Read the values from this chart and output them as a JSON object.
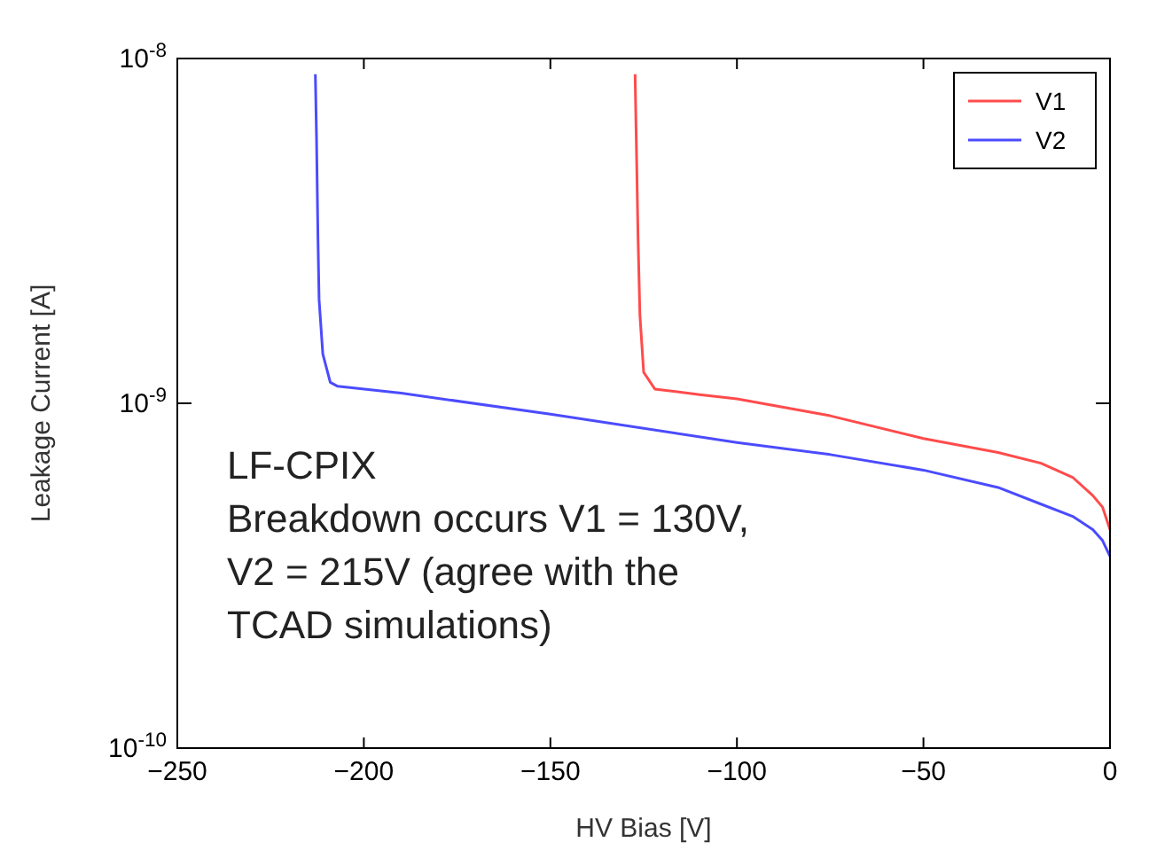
{
  "chart_data": {
    "type": "line",
    "xlabel": "HV Bias [V]",
    "ylabel": "Leakage Current [A]",
    "log": "y",
    "xlim": [
      -250,
      0
    ],
    "xticks": [
      -250,
      -200,
      -150,
      -100,
      -50,
      0
    ],
    "ylim": [
      1e-10,
      1e-08
    ],
    "yticks": [
      {
        "value": 1e-10,
        "label": "10$^{-10}$"
      },
      {
        "value": 1e-09,
        "label": "10$^{-9}$"
      },
      {
        "value": 1e-08,
        "label": "10$^{-8}$"
      }
    ],
    "legend": "top right",
    "grid": false,
    "line_style": "solid",
    "series": [
      {
        "name": "V1",
        "color": "#ff4b4b",
        "x": [
          -127.3,
          -127,
          -126.5,
          -126,
          -125,
          -122,
          -110,
          -100,
          -75,
          -50,
          -30,
          -18.5,
          -10,
          -4.6,
          -2,
          0
        ],
        "values": [
          9e-09,
          6e-09,
          3e-09,
          1.8e-09,
          1.23e-09,
          1.1e-09,
          1.06e-09,
          1.03e-09,
          9.2e-10,
          7.9e-10,
          7.2e-10,
          6.7e-10,
          6.1e-10,
          5.4e-10,
          5e-10,
          4.3e-10
        ]
      },
      {
        "name": "V2",
        "color": "#4b4bff",
        "x": [
          -213,
          -212.7,
          -212.3,
          -212,
          -211,
          -209,
          -207,
          -190,
          -150,
          -100,
          -75,
          -50,
          -30,
          -18.5,
          -10,
          -4.6,
          -2,
          0
        ],
        "values": [
          9e-09,
          6e-09,
          3e-09,
          2e-09,
          1.39e-09,
          1.15e-09,
          1.12e-09,
          1.07e-09,
          9.3e-10,
          7.7e-10,
          7.1e-10,
          6.4e-10,
          5.7e-10,
          5.1e-10,
          4.7e-10,
          4.3e-10,
          4e-10,
          3.6e-10
        ]
      }
    ],
    "annotations": [
      "LF-CPIX\nBreakdown occurs V1 = 130V,\nV2 = 215V (agree with the\nTCAD simulations)"
    ]
  }
}
